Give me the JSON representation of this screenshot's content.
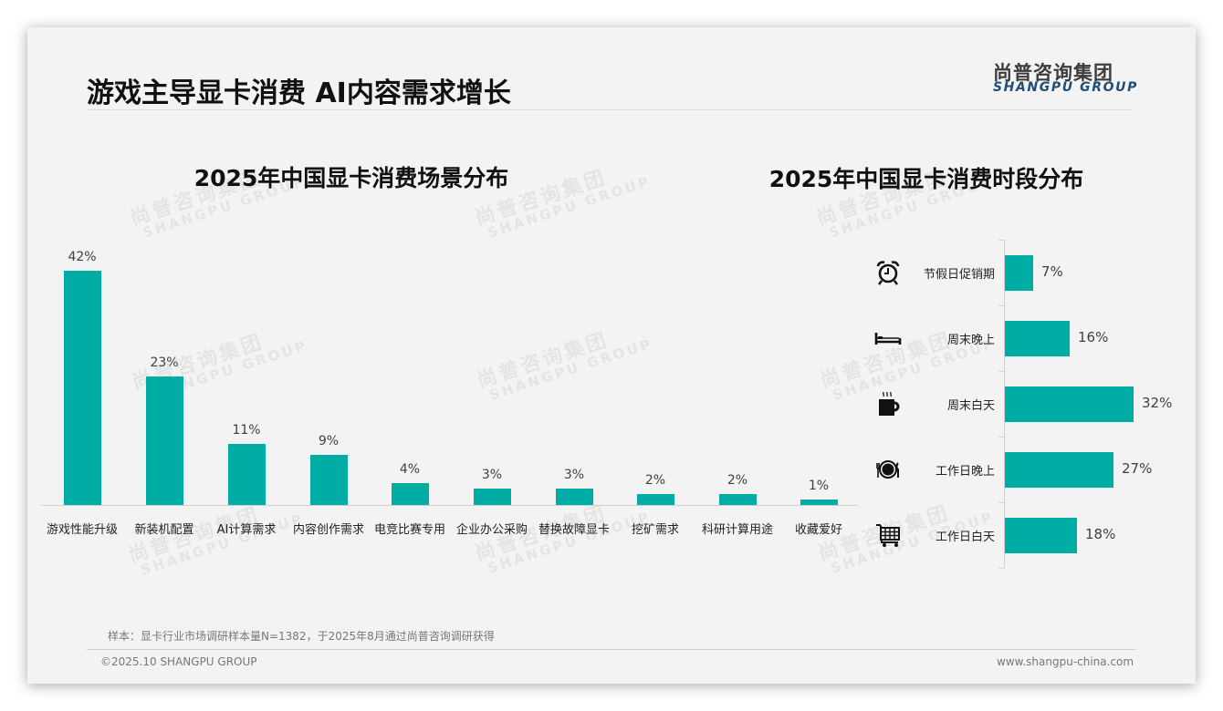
{
  "header": {
    "title": "游戏主导显卡消费 AI内容需求增长",
    "logo_cn": "尚普咨询集团",
    "logo_en": "SHANGPU GROUP"
  },
  "watermark": {
    "cn": "尚普咨询集团",
    "en": "SHANGPU GROUP"
  },
  "colors": {
    "bar": "#00ada5",
    "logo_en": "#1f4e79",
    "background": "#f3f3f3"
  },
  "chart_data": [
    {
      "type": "bar",
      "title": "2025年中国显卡消费场景分布",
      "categories": [
        "游戏性能升级",
        "新装机配置",
        "AI计算需求",
        "内容创作需求",
        "电竞比赛专用",
        "企业办公采购",
        "替换故障显卡",
        "挖矿需求",
        "科研计算用途",
        "收藏爱好"
      ],
      "values": [
        42,
        23,
        11,
        9,
        4,
        3,
        3,
        2,
        2,
        1
      ],
      "value_labels": [
        "42%",
        "23%",
        "11%",
        "9%",
        "4%",
        "3%",
        "3%",
        "2%",
        "2%",
        "1%"
      ],
      "unit": "%",
      "xlabel": "",
      "ylabel": "",
      "ylim": [
        0,
        42
      ],
      "grid": false,
      "legend": "none",
      "orientation": "vertical"
    },
    {
      "type": "bar",
      "title": "2025年中国显卡消费时段分布",
      "categories": [
        "节假日促销期",
        "周末晚上",
        "周末白天",
        "工作日晚上",
        "工作日白天"
      ],
      "values": [
        7,
        16,
        32,
        27,
        18
      ],
      "value_labels": [
        "7%",
        "16%",
        "32%",
        "27%",
        "18%"
      ],
      "icons": [
        "alarm-clock-icon",
        "bed-icon",
        "coffee-cup-icon",
        "plate-cutlery-icon",
        "shopping-cart-icon"
      ],
      "unit": "%",
      "xlabel": "",
      "ylabel": "",
      "xlim": [
        0,
        32
      ],
      "grid": false,
      "legend": "none",
      "orientation": "horizontal"
    }
  ],
  "footer": {
    "note": "样本：显卡行业市场调研样本量N=1382，于2025年8月通过尚普咨询调研获得",
    "copyright": "©2025.10 SHANGPU GROUP",
    "website": "www.shangpu-china.com"
  }
}
